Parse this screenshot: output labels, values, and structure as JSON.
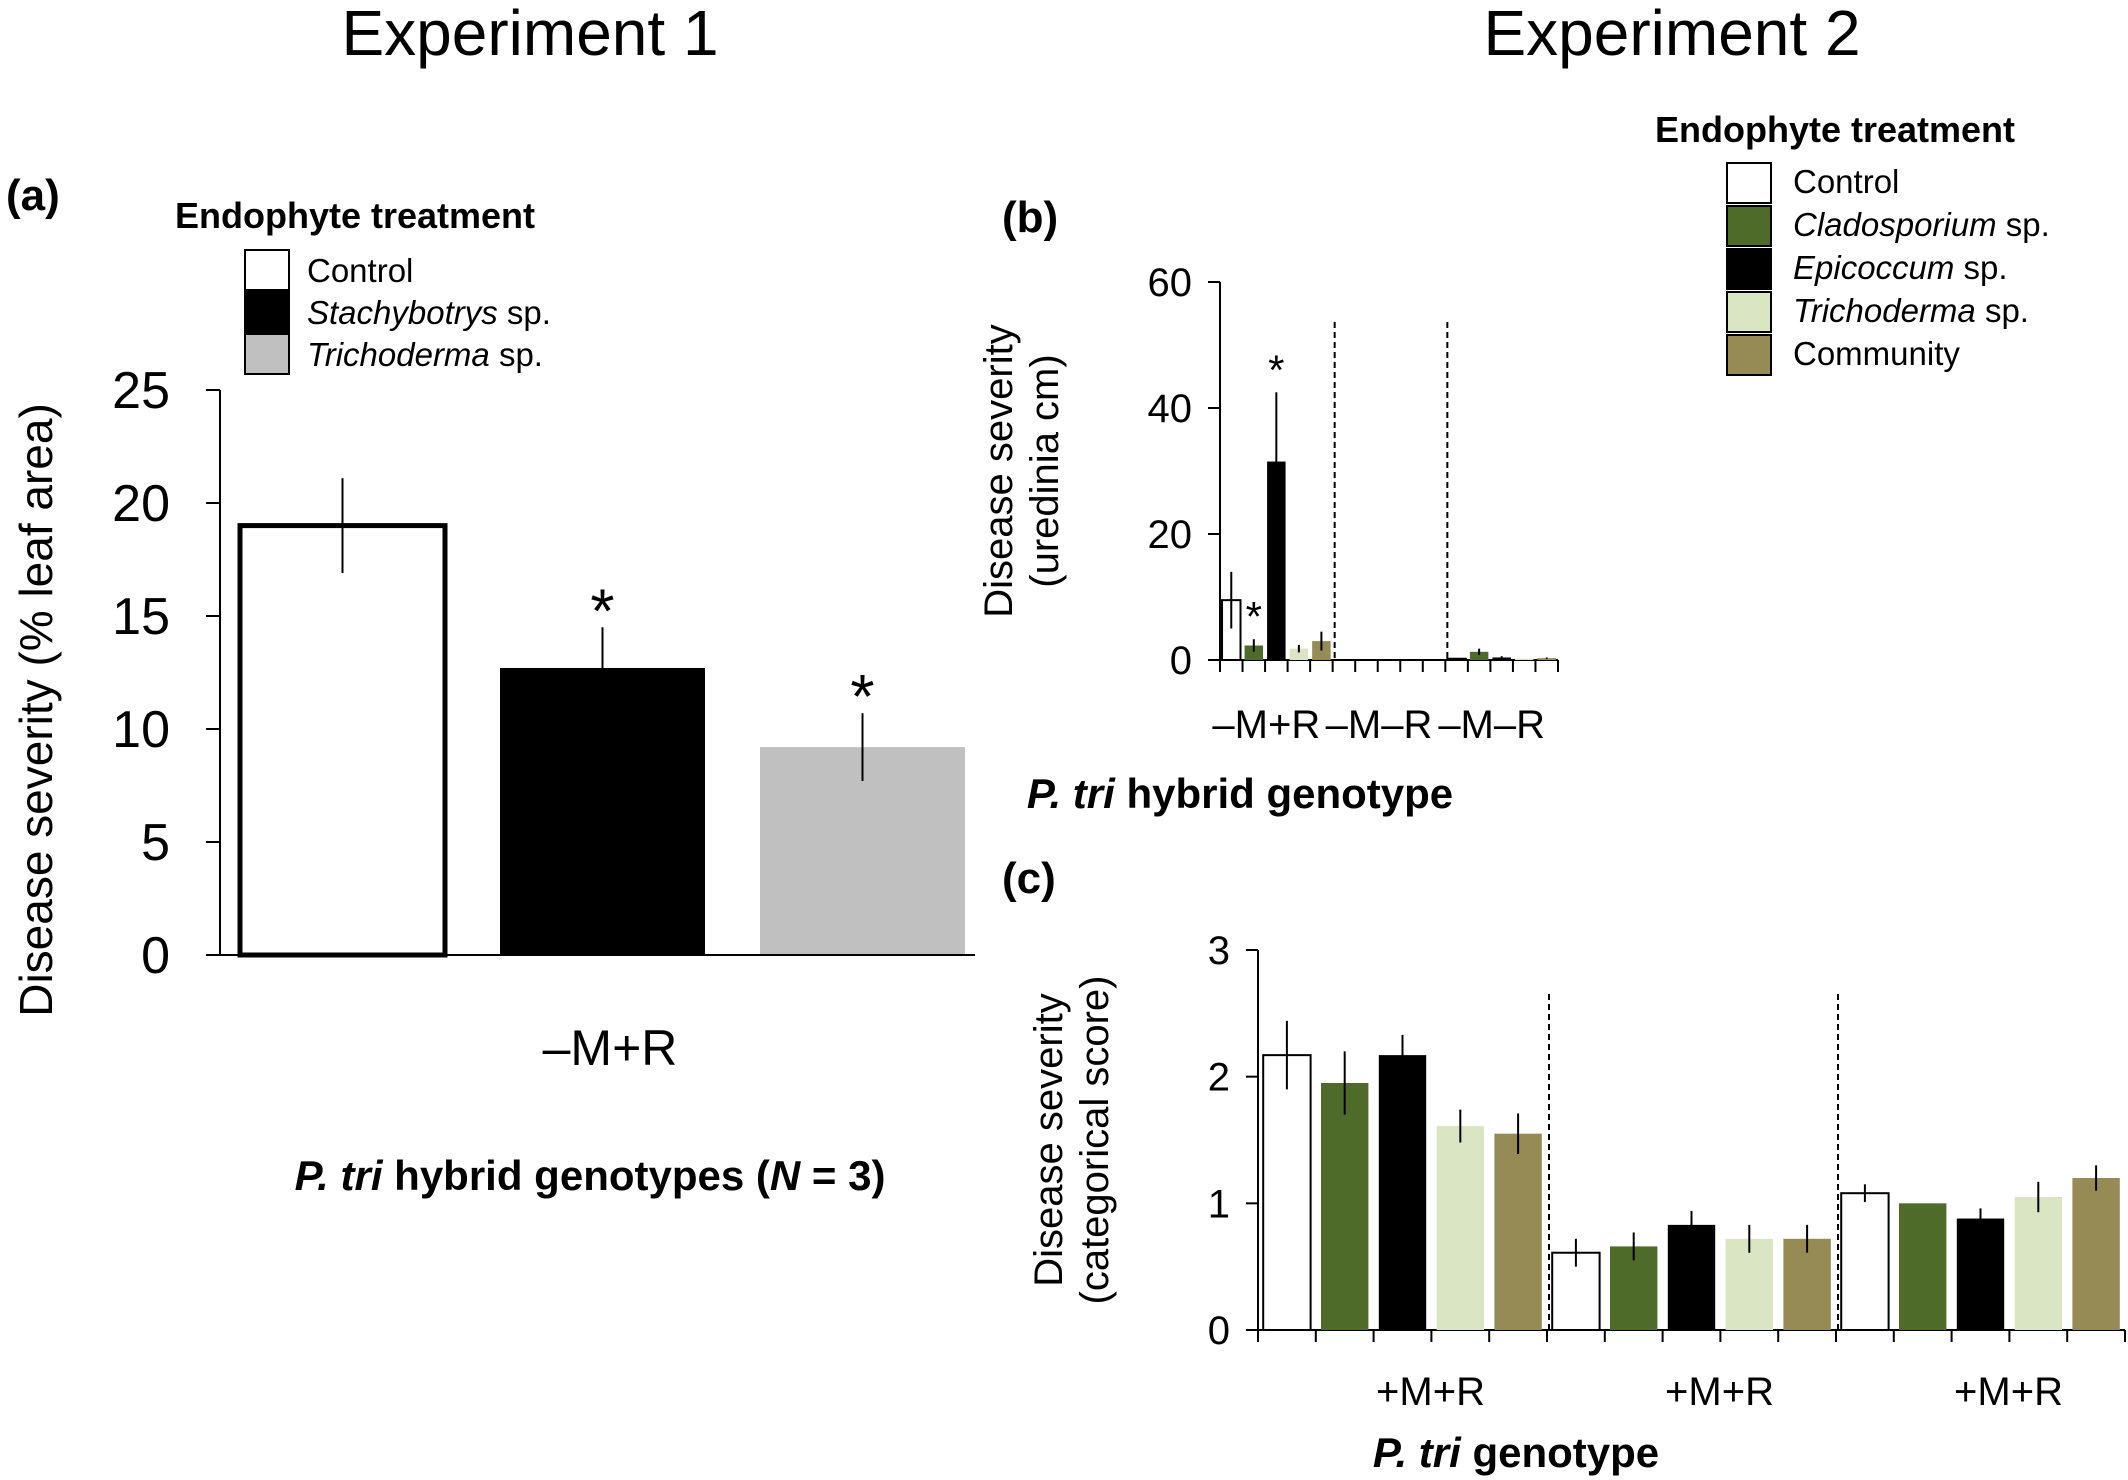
{
  "headings": {
    "experiment1": "Experiment 1",
    "experiment2": "Experiment 2"
  },
  "legend_a": {
    "title": "Endophyte treatment",
    "items": [
      {
        "italic": "",
        "text": "Control",
        "color": "#ffffff"
      },
      {
        "italic": "Stachybotrys",
        "text": " sp.",
        "color": "#000000"
      },
      {
        "italic": "Trichoderma",
        "text": " sp.",
        "color": "#c0c0c0"
      }
    ]
  },
  "legend_bc": {
    "title": "Endophyte treatment",
    "items": [
      {
        "italic": "",
        "text": "Control",
        "color": "#ffffff"
      },
      {
        "italic": "Cladosporium",
        "text": " sp.",
        "color": "#4e6b2a"
      },
      {
        "italic": "Epicoccum",
        "text": " sp.",
        "color": "#000000"
      },
      {
        "italic": "Trichoderma",
        "text": " sp.",
        "color": "#dae6c3"
      },
      {
        "italic": "",
        "text": "Community",
        "color": "#968b55"
      }
    ]
  },
  "chart_data": [
    {
      "panel": "(a)",
      "type": "bar",
      "ylabel": "Disease severity (% leaf area)",
      "xtitle": {
        "italic": "P. tri",
        "mid": " hybrid genotypes (",
        "n": "N",
        "tail": " = 3)"
      },
      "yticks": [
        "0",
        "5",
        "10",
        "15",
        "20",
        "25"
      ],
      "ylim": [
        0,
        25
      ],
      "categories": [
        "–M+R"
      ],
      "series": [
        {
          "name": "Control",
          "values": [
            19.0
          ],
          "error": [
            2.1
          ],
          "sig": [
            ""
          ]
        },
        {
          "name": "Stachybotrys sp.",
          "values": [
            12.7
          ],
          "error": [
            1.8
          ],
          "sig": [
            "*"
          ]
        },
        {
          "name": "Trichoderma sp.",
          "values": [
            9.2
          ],
          "error": [
            1.5
          ],
          "sig": [
            "*"
          ]
        }
      ]
    },
    {
      "panel": "(b)",
      "type": "bar",
      "ylabel": [
        "Disease severity",
        "(uredinia cm)"
      ],
      "xtitle": {
        "italic": "P. tri",
        "rest": " hybrid genotype"
      },
      "yticks": [
        "0",
        "20",
        "40",
        "60"
      ],
      "ylim": [
        0,
        60
      ],
      "categories": [
        "–M+R",
        "–M–R",
        "–M–R"
      ],
      "series": [
        {
          "name": "Control",
          "values": [
            9.5,
            0,
            0.2
          ],
          "error": [
            4.5,
            0,
            0
          ],
          "sig": [
            "",
            "",
            ""
          ]
        },
        {
          "name": "Cladosporium sp.",
          "values": [
            2.3,
            0,
            1.3
          ],
          "error": [
            1.0,
            0,
            0.5
          ],
          "sig": [
            "*",
            "",
            ""
          ]
        },
        {
          "name": "Epicoccum sp.",
          "values": [
            31.5,
            0,
            0.4
          ],
          "error": [
            11.0,
            0,
            0.2
          ],
          "sig": [
            "*",
            "",
            ""
          ]
        },
        {
          "name": "Trichoderma sp.",
          "values": [
            1.8,
            0,
            0.2
          ],
          "error": [
            0.6,
            0,
            0
          ],
          "sig": [
            "",
            "",
            ""
          ]
        },
        {
          "name": "Community",
          "values": [
            3.0,
            0,
            0.3
          ],
          "error": [
            1.5,
            0,
            0.1
          ],
          "sig": [
            "",
            "",
            ""
          ]
        }
      ]
    },
    {
      "panel": "(c)",
      "type": "bar",
      "ylabel": [
        "Disease severity",
        "(categorical score)"
      ],
      "xtitle": {
        "italic": "P. tri",
        "rest": " genotype"
      },
      "yticks": [
        "0",
        "1",
        "2",
        "3"
      ],
      "ylim": [
        0,
        3
      ],
      "categories": [
        "+M+R",
        "+M+R",
        "+M+R"
      ],
      "series": [
        {
          "name": "Control",
          "values": [
            2.17,
            0.61,
            1.08
          ],
          "error": [
            0.27,
            0.11,
            0.07
          ]
        },
        {
          "name": "Cladosporium sp.",
          "values": [
            1.95,
            0.66,
            1.0
          ],
          "error": [
            0.25,
            0.11,
            0
          ]
        },
        {
          "name": "Epicoccum sp.",
          "values": [
            2.17,
            0.83,
            0.88
          ],
          "error": [
            0.16,
            0.11,
            0.08
          ]
        },
        {
          "name": "Trichoderma sp.",
          "values": [
            1.61,
            0.72,
            1.05
          ],
          "error": [
            0.13,
            0.11,
            0.12
          ]
        },
        {
          "name": "Community",
          "values": [
            1.55,
            0.72,
            1.2
          ],
          "error": [
            0.16,
            0.11,
            0.1
          ]
        }
      ]
    }
  ]
}
